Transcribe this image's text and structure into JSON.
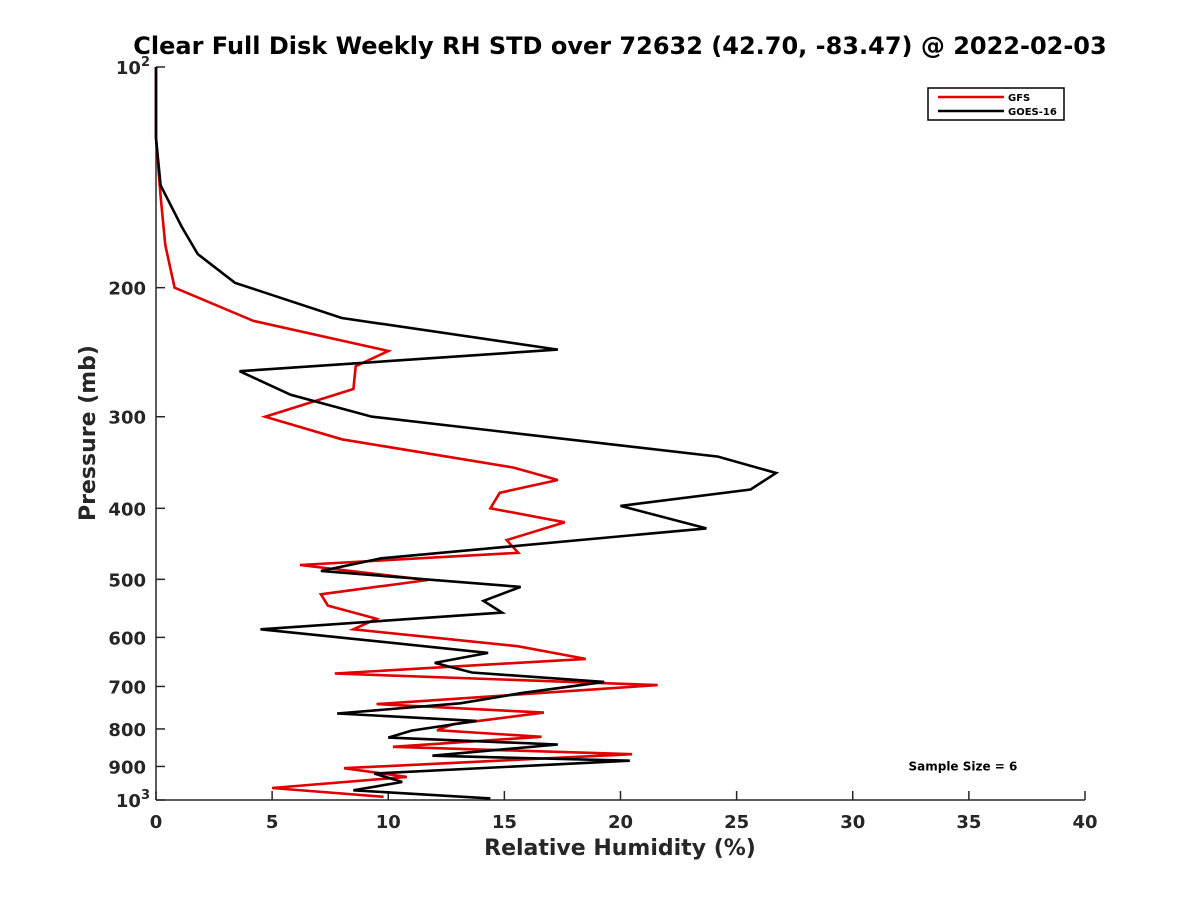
{
  "chart_data": {
    "type": "line",
    "title": "Clear Full Disk Weekly RH STD over 72632 (42.70, -83.47) @ 2022-02-03",
    "xlabel": "Relative Humidity (%)",
    "ylabel": "Pressure (mb)",
    "xlim": [
      0,
      40
    ],
    "ylim": [
      100,
      1000
    ],
    "y_scale": "log",
    "y_reversed": true,
    "grid": false,
    "legend_position": "top-right",
    "x_ticks": [
      0,
      5,
      10,
      15,
      20,
      25,
      30,
      35,
      40
    ],
    "y_ticks": [
      {
        "value": 100,
        "label": "10",
        "sup": "2"
      },
      {
        "value": 200,
        "label": "200"
      },
      {
        "value": 300,
        "label": "300"
      },
      {
        "value": 400,
        "label": "400"
      },
      {
        "value": 500,
        "label": "500"
      },
      {
        "value": 600,
        "label": "600"
      },
      {
        "value": 700,
        "label": "700"
      },
      {
        "value": 800,
        "label": "800"
      },
      {
        "value": 900,
        "label": "900"
      },
      {
        "value": 1000,
        "label": "10",
        "sup": "3"
      }
    ],
    "series": [
      {
        "name": "GFS",
        "color": "#e00000",
        "points": [
          [
            0,
            100
          ],
          [
            0,
            125
          ],
          [
            0.2,
            150
          ],
          [
            0.4,
            175
          ],
          [
            0.8,
            200
          ],
          [
            4.2,
            222
          ],
          [
            10.0,
            244
          ],
          [
            8.6,
            256
          ],
          [
            8.5,
            275
          ],
          [
            4.7,
            300
          ],
          [
            8.0,
            322
          ],
          [
            15.4,
            352
          ],
          [
            17.3,
            366
          ],
          [
            14.8,
            381
          ],
          [
            14.4,
            400
          ],
          [
            17.6,
            418
          ],
          [
            15.1,
            442
          ],
          [
            15.6,
            460
          ],
          [
            6.2,
            478
          ],
          [
            11.7,
            501
          ],
          [
            7.1,
            524
          ],
          [
            7.4,
            543
          ],
          [
            9.5,
            566
          ],
          [
            8.5,
            585
          ],
          [
            15.6,
            617
          ],
          [
            18.5,
            642
          ],
          [
            7.7,
            672
          ],
          [
            21.6,
            697
          ],
          [
            9.5,
            740
          ],
          [
            16.7,
            760
          ],
          [
            12.8,
            788
          ],
          [
            12.1,
            803
          ],
          [
            16.6,
            820
          ],
          [
            10.2,
            846
          ],
          [
            20.5,
            866
          ],
          [
            8.1,
            905
          ],
          [
            10.8,
            930
          ],
          [
            5.0,
            963
          ],
          [
            9.8,
            990
          ]
        ]
      },
      {
        "name": "GOES-16",
        "color": "#000000",
        "points": [
          [
            0,
            100
          ],
          [
            0,
            125
          ],
          [
            0.2,
            145
          ],
          [
            1.1,
            165
          ],
          [
            1.8,
            180
          ],
          [
            3.4,
            197
          ],
          [
            8.0,
            220
          ],
          [
            17.3,
            243
          ],
          [
            3.6,
            260
          ],
          [
            5.8,
            280
          ],
          [
            9.3,
            300
          ],
          [
            24.2,
            340
          ],
          [
            26.7,
            358
          ],
          [
            25.6,
            377
          ],
          [
            20.0,
            397
          ],
          [
            23.7,
            426
          ],
          [
            9.7,
            468
          ],
          [
            7.1,
            487
          ],
          [
            15.7,
            512
          ],
          [
            14.1,
            535
          ],
          [
            14.9,
            555
          ],
          [
            4.5,
            585
          ],
          [
            7.9,
            600
          ],
          [
            14.3,
            630
          ],
          [
            12.0,
            650
          ],
          [
            13.6,
            670
          ],
          [
            19.3,
            690
          ],
          [
            15.7,
            715
          ],
          [
            13.1,
            738
          ],
          [
            7.8,
            762
          ],
          [
            13.8,
            780
          ],
          [
            11.0,
            804
          ],
          [
            10.0,
            822
          ],
          [
            17.3,
            840
          ],
          [
            11.9,
            870
          ],
          [
            20.4,
            884
          ],
          [
            9.4,
            920
          ],
          [
            10.6,
            945
          ],
          [
            8.5,
            970
          ],
          [
            14.4,
            995
          ]
        ]
      }
    ],
    "annotations": [
      {
        "text": "Sample Size = 6",
        "x": 32.4,
        "y": 900
      }
    ]
  }
}
